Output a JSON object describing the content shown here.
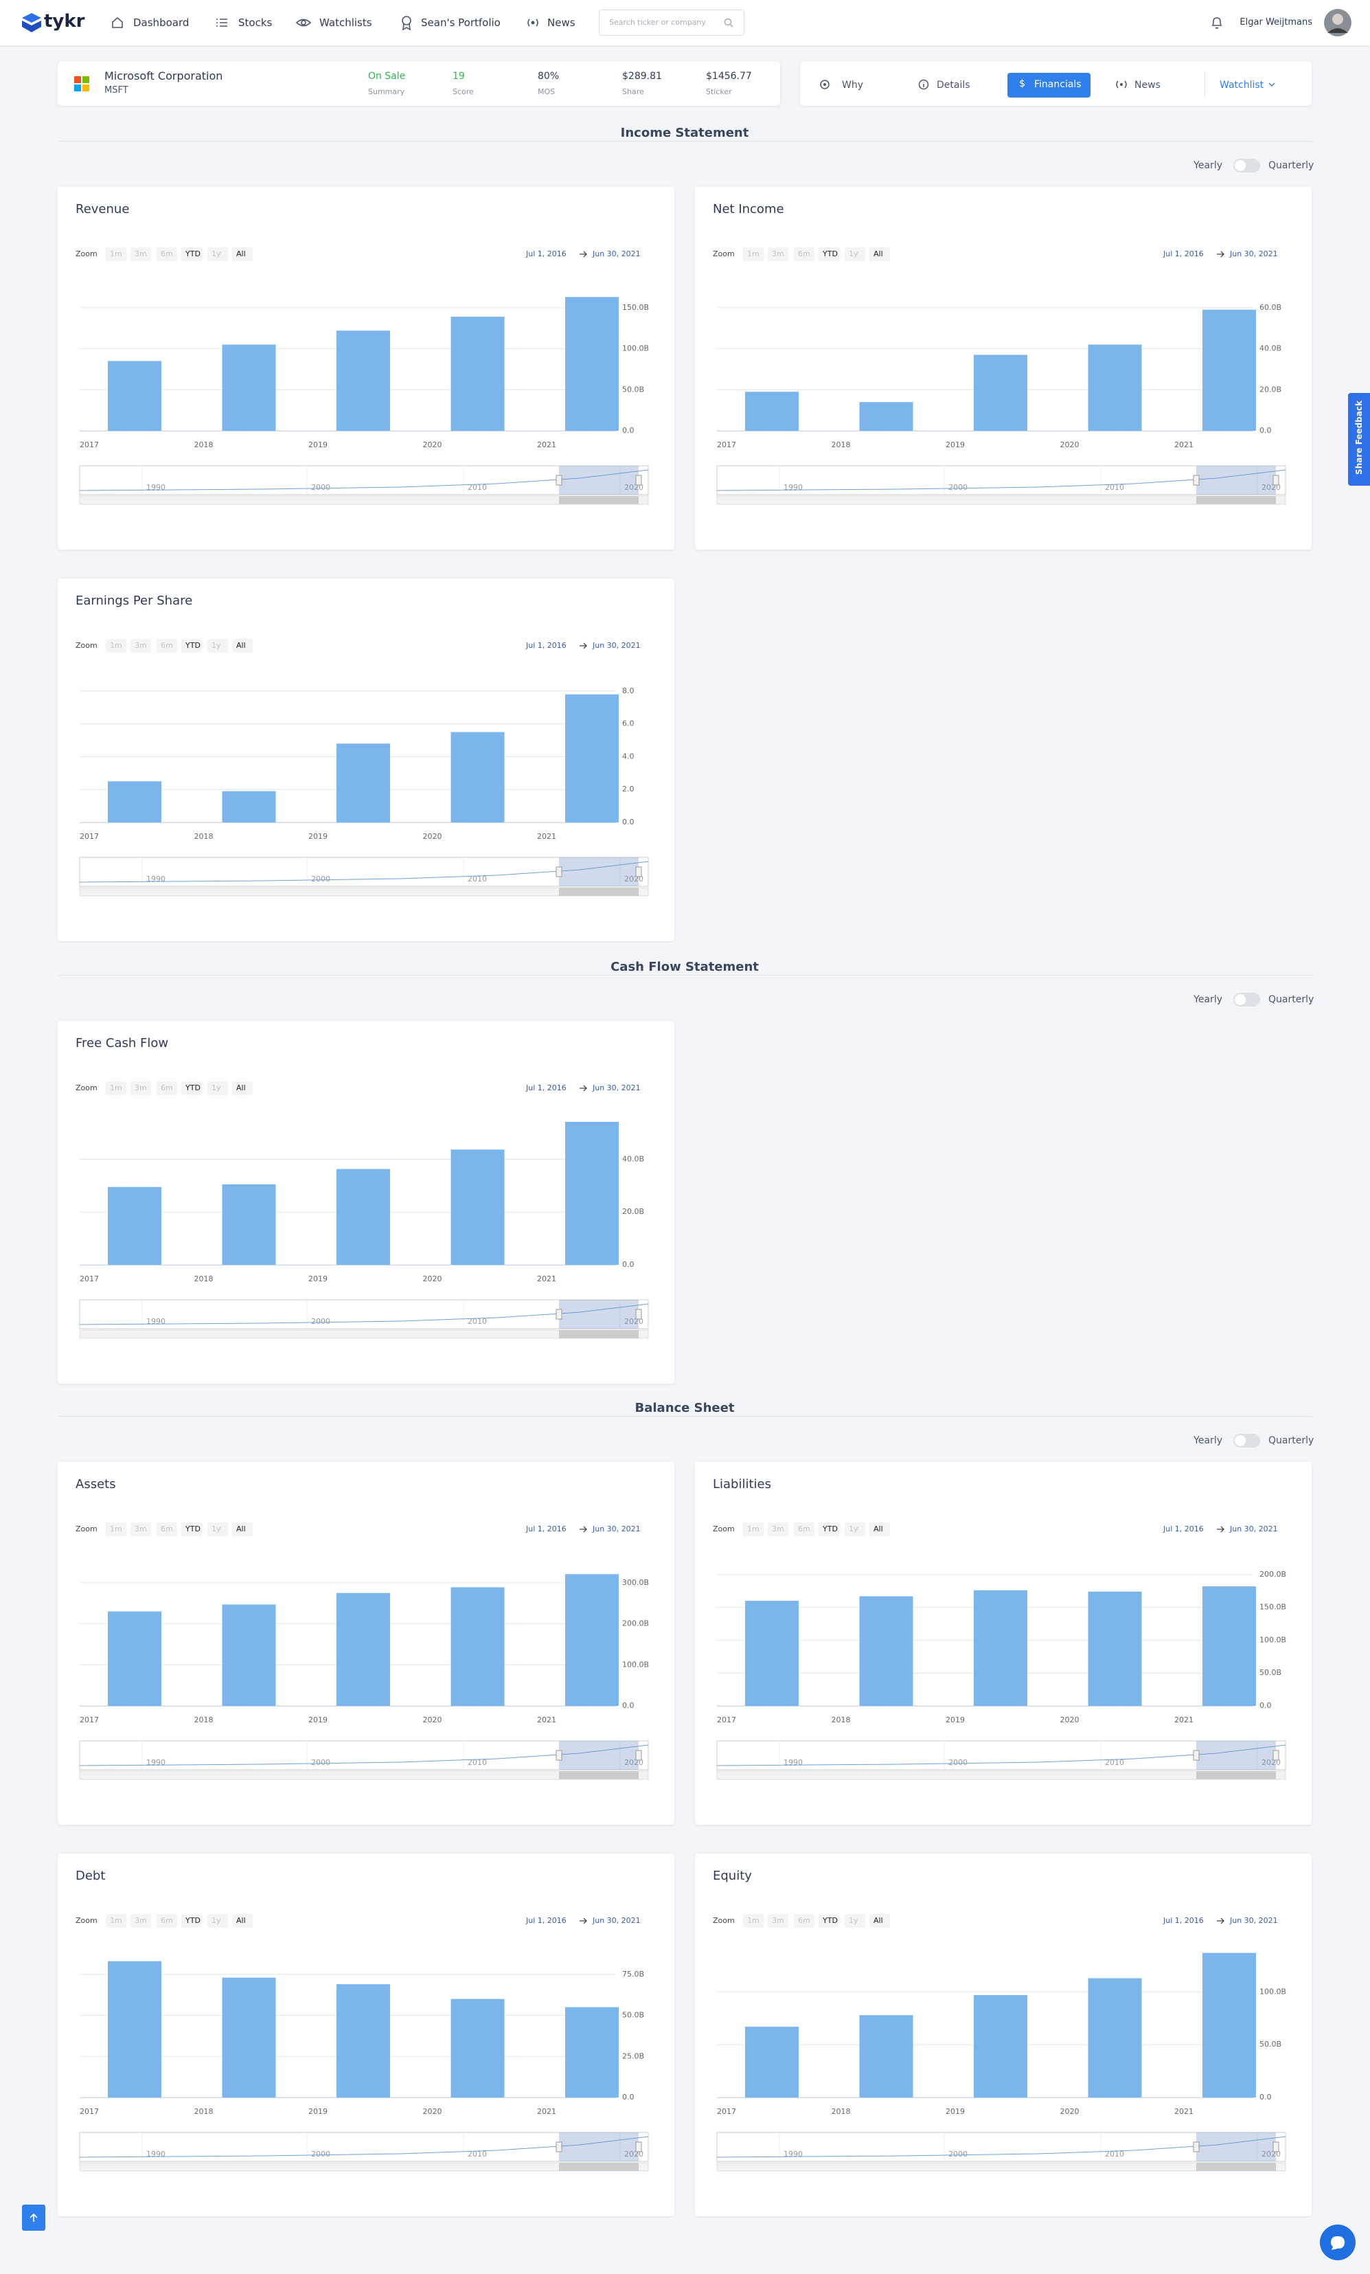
{
  "header": {
    "logo": "tykr",
    "nav": [
      "Dashboard",
      "Stocks",
      "Watchlists",
      "Sean's Portfolio",
      "News"
    ],
    "search_placeholder": "Search ticker or company",
    "user": "Elgar Weijtmans"
  },
  "stock": {
    "name": "Microsoft Corporation",
    "ticker": "MSFT",
    "stats": [
      {
        "value": "On Sale",
        "label": "Summary"
      },
      {
        "value": "19",
        "label": "Score"
      },
      {
        "value": "80%",
        "label": "MOS"
      },
      {
        "value": "$289.81",
        "label": "Share"
      },
      {
        "value": "$1456.77",
        "label": "Sticker"
      }
    ]
  },
  "tabs": [
    "Why",
    "Details",
    "Financials",
    "News",
    "Watchlist"
  ],
  "sections": [
    {
      "title": "Income Statement",
      "toggle": [
        "Yearly",
        "Quarterly"
      ]
    },
    {
      "title": "Cash Flow Statement",
      "toggle": [
        "Yearly",
        "Quarterly"
      ]
    },
    {
      "title": "Balance Sheet",
      "toggle": [
        "Yearly",
        "Quarterly"
      ]
    }
  ],
  "feedback": "Share Feedback",
  "chart_data": [
    {
      "type": "bar",
      "title": "Revenue",
      "color": "#7cb5ec",
      "grid": true,
      "zoom_label": "Zoom",
      "zoom_options": [
        "1m",
        "3m",
        "6m",
        "YTD",
        "1y",
        "All"
      ],
      "range_start": "Jul 1, 2016",
      "range_end": "Jun 30, 2021",
      "navigator_labels": [
        "1990",
        "2000",
        "2010",
        "2020"
      ],
      "categories": [
        "2017",
        "2018",
        "2019",
        "2020",
        "2021"
      ],
      "values": [
        85,
        105,
        122,
        139,
        163
      ],
      "ylim": [
        0,
        180
      ],
      "yticks": [
        {
          "value": 0,
          "label": "0.0"
        },
        {
          "value": 50,
          "label": "50.0B"
        },
        {
          "value": 100,
          "label": "100.0B"
        },
        {
          "value": 150,
          "label": "150.0B"
        }
      ]
    },
    {
      "type": "bar",
      "title": "Net Income",
      "color": "#7cb5ec",
      "grid": true,
      "zoom_label": "Zoom",
      "zoom_options": [
        "1m",
        "3m",
        "6m",
        "YTD",
        "1y",
        "All"
      ],
      "range_start": "Jul 1, 2016",
      "range_end": "Jun 30, 2021",
      "navigator_labels": [
        "1990",
        "2000",
        "2010",
        "2020"
      ],
      "categories": [
        "2017",
        "2018",
        "2019",
        "2020",
        "2021"
      ],
      "values": [
        19,
        14,
        37,
        42,
        59
      ],
      "ylim": [
        0,
        72
      ],
      "yticks": [
        {
          "value": 0,
          "label": "0.0"
        },
        {
          "value": 20,
          "label": "20.0B"
        },
        {
          "value": 40,
          "label": "40.0B"
        },
        {
          "value": 60,
          "label": "60.0B"
        }
      ]
    },
    {
      "type": "bar",
      "title": "Earnings Per Share",
      "color": "#7cb5ec",
      "grid": true,
      "zoom_label": "Zoom",
      "zoom_options": [
        "1m",
        "3m",
        "6m",
        "YTD",
        "1y",
        "All"
      ],
      "range_start": "Jul 1, 2016",
      "range_end": "Jun 30, 2021",
      "navigator_labels": [
        "1990",
        "2000",
        "2010",
        "2020"
      ],
      "categories": [
        "2017",
        "2018",
        "2019",
        "2020",
        "2021"
      ],
      "values": [
        2.5,
        1.9,
        4.8,
        5.5,
        7.8
      ],
      "ylim": [
        0,
        9
      ],
      "yticks": [
        {
          "value": 0,
          "label": "0.0"
        },
        {
          "value": 2,
          "label": "2.0"
        },
        {
          "value": 4,
          "label": "4.0"
        },
        {
          "value": 6,
          "label": "6.0"
        },
        {
          "value": 8,
          "label": "8.0"
        }
      ]
    },
    {
      "type": "bar",
      "title": "Free Cash Flow",
      "color": "#7cb5ec",
      "grid": true,
      "zoom_label": "Zoom",
      "zoom_options": [
        "1m",
        "3m",
        "6m",
        "YTD",
        "1y",
        "All"
      ],
      "range_start": "Jul 1, 2016",
      "range_end": "Jun 30, 2021",
      "navigator_labels": [
        "1990",
        "2000",
        "2010",
        "2020"
      ],
      "categories": [
        "2017",
        "2018",
        "2019",
        "2020",
        "2021"
      ],
      "values": [
        29.5,
        30.5,
        36.3,
        43.7,
        54.2
      ],
      "ylim": [
        0,
        56
      ],
      "yticks": [
        {
          "value": 0,
          "label": "0.0"
        },
        {
          "value": 20,
          "label": "20.0B"
        },
        {
          "value": 40,
          "label": "40.0B"
        }
      ]
    },
    {
      "type": "bar",
      "title": "Assets",
      "color": "#7cb5ec",
      "grid": true,
      "zoom_label": "Zoom",
      "zoom_options": [
        "1m",
        "3m",
        "6m",
        "YTD",
        "1y",
        "All"
      ],
      "range_start": "Jul 1, 2016",
      "range_end": "Jun 30, 2021",
      "navigator_labels": [
        "1990",
        "2000",
        "2010",
        "2020"
      ],
      "categories": [
        "2017",
        "2018",
        "2019",
        "2020",
        "2021"
      ],
      "values": [
        230,
        247,
        275,
        289,
        321
      ],
      "ylim": [
        0,
        360
      ],
      "yticks": [
        {
          "value": 0,
          "label": "0.0"
        },
        {
          "value": 100,
          "label": "100.0B"
        },
        {
          "value": 200,
          "label": "200.0B"
        },
        {
          "value": 300,
          "label": "300.0B"
        }
      ]
    },
    {
      "type": "bar",
      "title": "Liabilities",
      "color": "#7cb5ec",
      "grid": true,
      "zoom_label": "Zoom",
      "zoom_options": [
        "1m",
        "3m",
        "6m",
        "YTD",
        "1y",
        "All"
      ],
      "range_start": "Jul 1, 2016",
      "range_end": "Jun 30, 2021",
      "navigator_labels": [
        "1990",
        "2000",
        "2010",
        "2020"
      ],
      "categories": [
        "2017",
        "2018",
        "2019",
        "2020",
        "2021"
      ],
      "values": [
        160,
        167,
        176,
        174,
        182
      ],
      "ylim": [
        0,
        225
      ],
      "yticks": [
        {
          "value": 0,
          "label": "0.0"
        },
        {
          "value": 50,
          "label": "50.0B"
        },
        {
          "value": 100,
          "label": "100.0B"
        },
        {
          "value": 150,
          "label": "150.0B"
        },
        {
          "value": 200,
          "label": "200.0B"
        }
      ]
    },
    {
      "type": "bar",
      "title": "Debt",
      "color": "#7cb5ec",
      "grid": true,
      "zoom_label": "Zoom",
      "zoom_options": [
        "1m",
        "3m",
        "6m",
        "YTD",
        "1y",
        "All"
      ],
      "range_start": "Jul 1, 2016",
      "range_end": "Jun 30, 2021",
      "navigator_labels": [
        "1990",
        "2000",
        "2010",
        "2020"
      ],
      "categories": [
        "2017",
        "2018",
        "2019",
        "2020",
        "2021"
      ],
      "values": [
        83,
        73,
        69,
        60,
        55
      ],
      "ylim": [
        0,
        90
      ],
      "yticks": [
        {
          "value": 0,
          "label": "0.0"
        },
        {
          "value": 25,
          "label": "25.0B"
        },
        {
          "value": 50,
          "label": "50.0B"
        },
        {
          "value": 75,
          "label": "75.0B"
        }
      ]
    },
    {
      "type": "bar",
      "title": "Equity",
      "color": "#7cb5ec",
      "grid": true,
      "zoom_label": "Zoom",
      "zoom_options": [
        "1m",
        "3m",
        "6m",
        "YTD",
        "1y",
        "All"
      ],
      "range_start": "Jul 1, 2016",
      "range_end": "Jun 30, 2021",
      "navigator_labels": [
        "1990",
        "2000",
        "2010",
        "2020"
      ],
      "categories": [
        "2017",
        "2018",
        "2019",
        "2020",
        "2021"
      ],
      "values": [
        67,
        78,
        97,
        113,
        137
      ],
      "ylim": [
        0,
        140
      ],
      "yticks": [
        {
          "value": 0,
          "label": "0.0"
        },
        {
          "value": 50,
          "label": "50.0B"
        },
        {
          "value": 100,
          "label": "100.0B"
        }
      ]
    }
  ]
}
